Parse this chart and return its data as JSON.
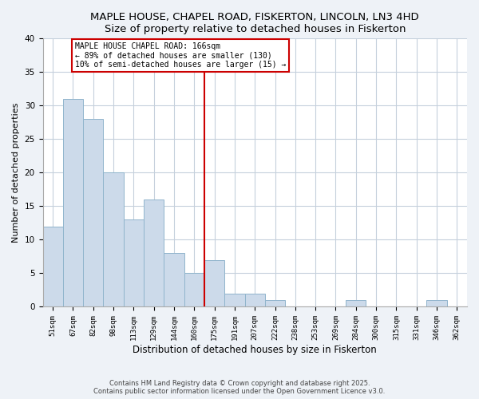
{
  "title": "MAPLE HOUSE, CHAPEL ROAD, FISKERTON, LINCOLN, LN3 4HD",
  "subtitle": "Size of property relative to detached houses in Fiskerton",
  "xlabel": "Distribution of detached houses by size in Fiskerton",
  "ylabel": "Number of detached properties",
  "bar_labels": [
    "51sqm",
    "67sqm",
    "82sqm",
    "98sqm",
    "113sqm",
    "129sqm",
    "144sqm",
    "160sqm",
    "175sqm",
    "191sqm",
    "207sqm",
    "222sqm",
    "238sqm",
    "253sqm",
    "269sqm",
    "284sqm",
    "300sqm",
    "315sqm",
    "331sqm",
    "346sqm",
    "362sqm"
  ],
  "bar_values": [
    12,
    31,
    28,
    20,
    13,
    16,
    8,
    5,
    7,
    2,
    2,
    1,
    0,
    0,
    0,
    1,
    0,
    0,
    0,
    1,
    0
  ],
  "bar_color": "#ccdaea",
  "bar_edge_color": "#90b4cc",
  "vline_x": 7.5,
  "vline_color": "#cc0000",
  "annotation_title": "MAPLE HOUSE CHAPEL ROAD: 166sqm",
  "annotation_line1": "← 89% of detached houses are smaller (130)",
  "annotation_line2": "10% of semi-detached houses are larger (15) →",
  "annotation_box_color": "#ffffff",
  "annotation_box_edge": "#cc0000",
  "ylim": [
    0,
    40
  ],
  "yticks": [
    0,
    5,
    10,
    15,
    20,
    25,
    30,
    35,
    40
  ],
  "footnote1": "Contains HM Land Registry data © Crown copyright and database right 2025.",
  "footnote2": "Contains public sector information licensed under the Open Government Licence v3.0.",
  "bg_color": "#eef2f7",
  "plot_bg_color": "#ffffff",
  "grid_color": "#c5d0dc"
}
